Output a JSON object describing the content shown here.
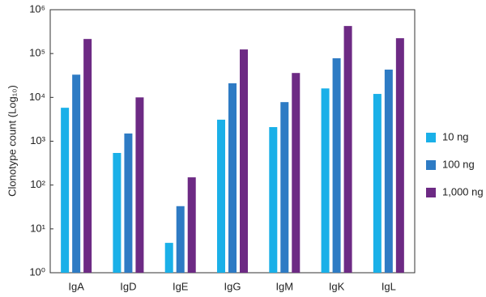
{
  "chart_data": {
    "type": "bar",
    "y_label": "Clonotype count (Log₁₀)",
    "categories": [
      "IgA",
      "IgD",
      "IgE",
      "IgG",
      "IgM",
      "IgK",
      "IgL"
    ],
    "series": [
      {
        "name": "10 ng",
        "color": "#1ab0e8",
        "values": [
          5800,
          540,
          4.8,
          3100,
          2100,
          16000,
          12000
        ]
      },
      {
        "name": "100 ng",
        "color": "#2e7bc4",
        "values": [
          33000,
          1500,
          33,
          21000,
          7800,
          78000,
          43000
        ]
      },
      {
        "name": "1,000 ng",
        "color": "#6d2a84",
        "values": [
          215000,
          10000,
          150,
          124000,
          36000,
          425000,
          224000
        ]
      }
    ],
    "log_scale": true,
    "ylim": [
      1,
      1000000
    ],
    "yticks": [
      {
        "value": 1,
        "label": "10⁰"
      },
      {
        "value": 10,
        "label": "10¹"
      },
      {
        "value": 100,
        "label": "10²"
      },
      {
        "value": 1000,
        "label": "10³"
      },
      {
        "value": 10000,
        "label": "10⁴"
      },
      {
        "value": 100000,
        "label": "10⁵"
      },
      {
        "value": 1000000,
        "label": "10⁶"
      }
    ],
    "grid": false,
    "legend": "right"
  }
}
